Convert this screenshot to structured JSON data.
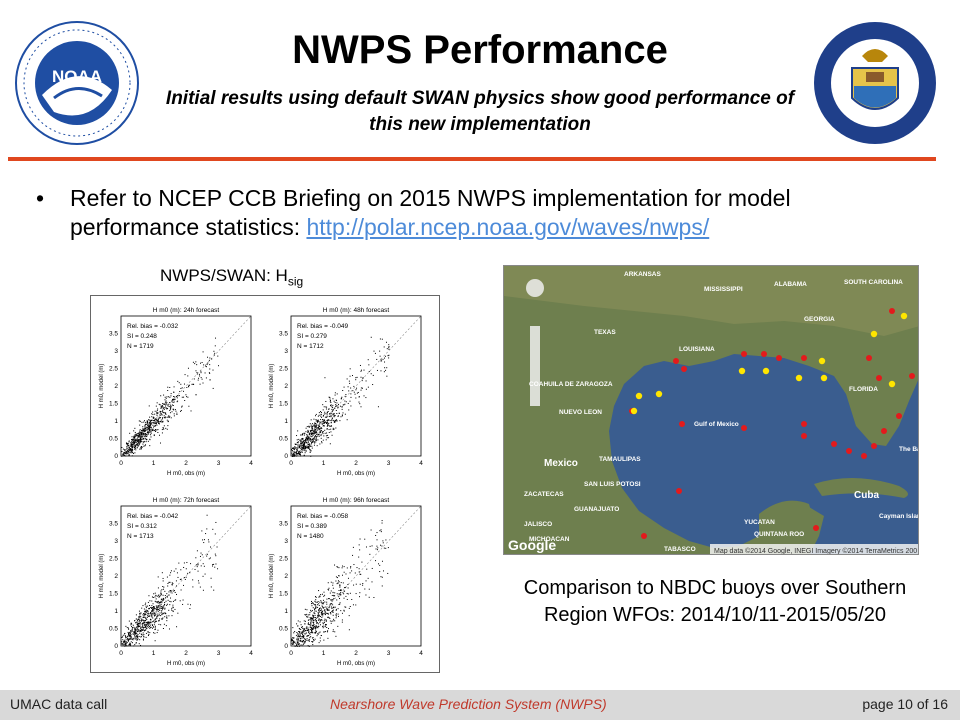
{
  "header": {
    "title": "NWPS Performance",
    "subtitle": "Initial results using default SWAN physics show good performance of this new implementation",
    "noaa_logo_text": "NOAA",
    "commerce_logo_text": "DEPARTMENT OF COMMERCE · UNITED STATES OF AMERICA"
  },
  "bullet": {
    "text": "Refer to NCEP CCB Briefing on 2015 NWPS implementation for model performance statistics: ",
    "link": "http://polar.ncep.noaa.gov/waves/nwps/"
  },
  "scatter": {
    "heading": "NWPS/SWAN: H",
    "heading_sub": "sig",
    "panels": [
      {
        "title": "(m): 24h forecast",
        "bias": "Rel. bias = -0.032",
        "si": "SI = 0.248",
        "n": "N = 1719"
      },
      {
        "title": "(m): 48h forecast",
        "bias": "Rel. bias = -0.049",
        "si": "SI = 0.279",
        "n": "N = 1712"
      },
      {
        "title": "(m): 72h forecast",
        "bias": "Rel. bias = -0.042",
        "si": "SI = 0.312",
        "n": "N = 1713"
      },
      {
        "title": "(m): 96h forecast",
        "bias": "Rel. bias = -0.058",
        "si": "SI = 0.389",
        "n": "N = 1480"
      }
    ],
    "xlabel": "H m0, obs (m)",
    "ylabel": "H m0, model (m)"
  },
  "map": {
    "labels": [
      "ARKANSAS",
      "MISSISSIPPI",
      "ALABAMA",
      "SOUTH CAROLINA",
      "GEORGIA",
      "TEXAS",
      "LOUISIANA",
      "FLORIDA",
      "COAHUILA DE ZARAGOZA",
      "NUEVO LEON",
      "Gulf of Mexico",
      "Mexico",
      "TAMAULIPAS",
      "SAN LUIS POTOSI",
      "ZACATECAS",
      "JALISCO",
      "GUANAJUATO",
      "MICHOACAN",
      "YUCATAN",
      "QUINTANA ROO",
      "TABASCO",
      "Cuba",
      "Cayman Islands",
      "The Bahamas"
    ],
    "brand": "Google",
    "attribution": "Map data ©2014 Google, INEGI Imagery ©2014 TerraMetrics  200 km"
  },
  "caption": "Comparison to NBDC buoys over Southern Region WFOs: 2014/10/11-2015/05/20",
  "footer": {
    "left": "UMAC data call",
    "center": "Nearshore Wave Prediction System (NWPS)",
    "right": "page 10 of 16"
  }
}
